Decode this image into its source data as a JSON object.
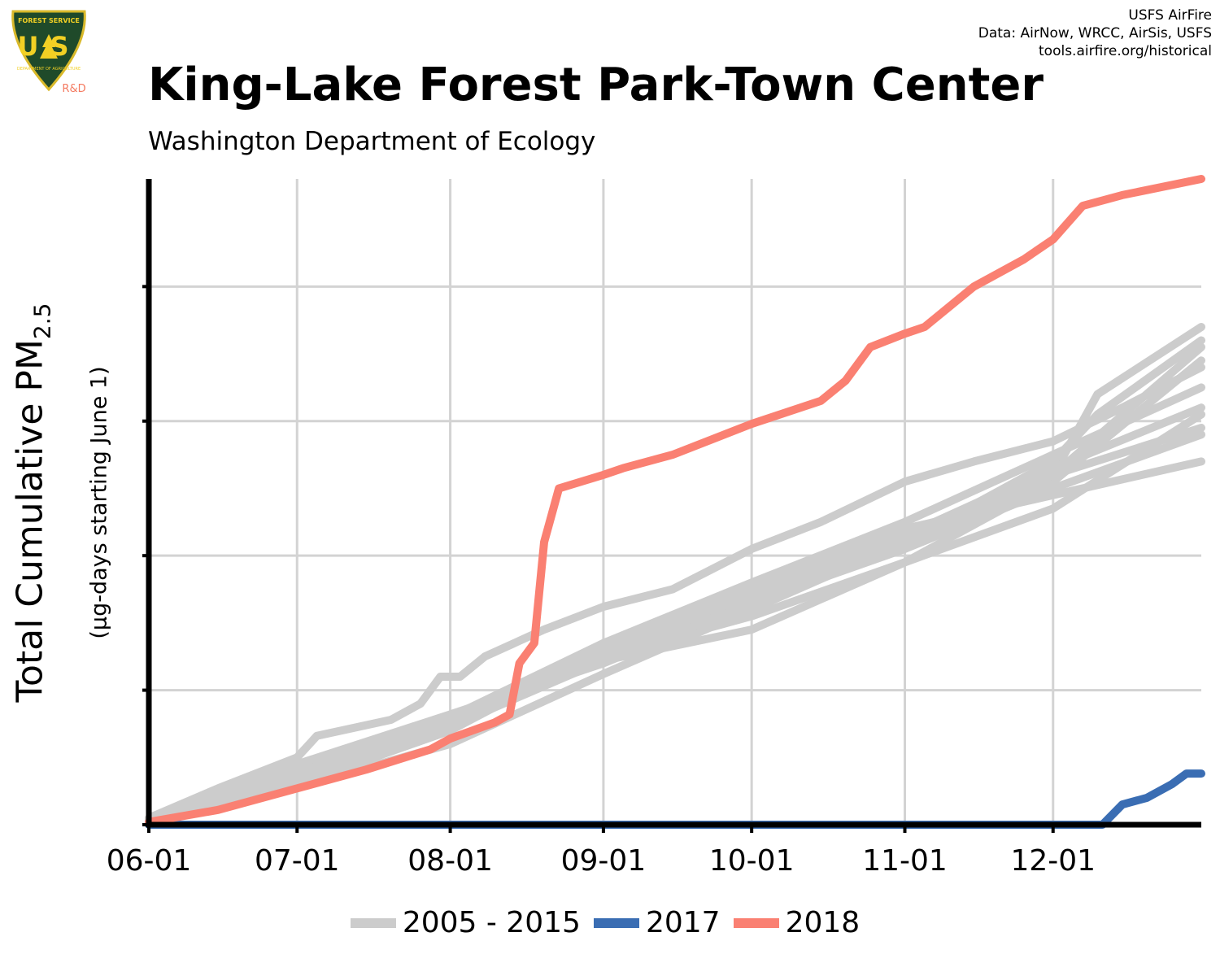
{
  "header": {
    "title": "King-Lake Forest Park-Town Center",
    "subtitle": "Washington Department of Ecology",
    "credits": [
      "USFS AirFire",
      "Data: AirNow, WRCC, AirSis, USFS",
      "tools.airfire.org/historical"
    ]
  },
  "logo": {
    "top_text": "FOREST SERVICE",
    "letters": "US",
    "bottom_text": "DEPARTMENT OF AGRICULTURE",
    "tag": "R&D",
    "colors": {
      "shield": "#1f4a2a",
      "letters": "#f2d024",
      "tag": "#f47a60"
    }
  },
  "axes": {
    "ylabel_main": "Total Cumulative PM",
    "ylabel_sub": "2.5",
    "ylabel_note": "(µg-days starting June 1)"
  },
  "legend": [
    {
      "label": "2005 - 2015",
      "color": "#cccccc"
    },
    {
      "label": "2017",
      "color": "#3a6db3"
    },
    {
      "label": "2018",
      "color": "#fa8072"
    }
  ],
  "chart_data": {
    "type": "line",
    "xlabel": "",
    "ylabel": "Total Cumulative PM2.5 (µg-days starting June 1)",
    "x_ticks": [
      "06-01",
      "07-01",
      "08-01",
      "09-01",
      "10-01",
      "11-01",
      "12-01"
    ],
    "x_range": [
      "06-01",
      "12-31"
    ],
    "y_range": [
      0,
      4.8
    ],
    "y_ticks": [
      0,
      1,
      2,
      3,
      4
    ],
    "y_tick_labels_shown": false,
    "grid": true,
    "legend_position": "bottom",
    "colors": {
      "historical": "#cccccc",
      "2017": "#3a6db3",
      "2018": "#fa8072"
    },
    "series": [
      {
        "name": "2005 - 2015",
        "group": "historical",
        "points": [
          [
            "06-01",
            0.05
          ],
          [
            "06-15",
            0.27
          ],
          [
            "07-01",
            0.5
          ],
          [
            "07-05",
            0.66
          ],
          [
            "07-20",
            0.78
          ],
          [
            "07-26",
            0.9
          ],
          [
            "07-30",
            1.1
          ],
          [
            "08-03",
            1.1
          ],
          [
            "08-08",
            1.25
          ],
          [
            "08-20",
            1.45
          ],
          [
            "09-01",
            1.62
          ],
          [
            "09-15",
            1.75
          ],
          [
            "10-01",
            2.05
          ],
          [
            "10-15",
            2.25
          ],
          [
            "11-01",
            2.55
          ],
          [
            "11-15",
            2.7
          ],
          [
            "12-01",
            2.85
          ],
          [
            "12-15",
            3.1
          ],
          [
            "12-31",
            3.4
          ]
        ]
      },
      {
        "name": "2005 - 2015",
        "group": "historical",
        "points": [
          [
            "06-01",
            0.02
          ],
          [
            "07-01",
            0.28
          ],
          [
            "08-01",
            0.6
          ],
          [
            "09-01",
            1.12
          ],
          [
            "10-01",
            1.6
          ],
          [
            "11-01",
            2.1
          ],
          [
            "12-01",
            2.6
          ],
          [
            "12-10",
            3.2
          ],
          [
            "12-31",
            3.7
          ]
        ]
      },
      {
        "name": "2005 - 2015",
        "group": "historical",
        "points": [
          [
            "06-01",
            0.03
          ],
          [
            "07-01",
            0.42
          ],
          [
            "08-01",
            0.8
          ],
          [
            "09-01",
            1.35
          ],
          [
            "10-01",
            1.75
          ],
          [
            "11-01",
            2.2
          ],
          [
            "12-01",
            2.45
          ],
          [
            "12-31",
            2.7
          ]
        ]
      },
      {
        "name": "2005 - 2015",
        "group": "historical",
        "points": [
          [
            "06-01",
            0.02
          ],
          [
            "07-01",
            0.3
          ],
          [
            "08-01",
            0.7
          ],
          [
            "09-01",
            1.3
          ],
          [
            "10-01",
            1.65
          ],
          [
            "11-01",
            2.1
          ],
          [
            "12-01",
            2.7
          ],
          [
            "12-10",
            3.05
          ],
          [
            "12-31",
            3.6
          ]
        ]
      },
      {
        "name": "2005 - 2015",
        "group": "historical",
        "points": [
          [
            "06-01",
            0.03
          ],
          [
            "07-01",
            0.4
          ],
          [
            "08-01",
            0.75
          ],
          [
            "09-01",
            1.25
          ],
          [
            "10-01",
            1.55
          ],
          [
            "11-01",
            1.95
          ],
          [
            "12-01",
            2.55
          ],
          [
            "12-31",
            3.45
          ]
        ]
      },
      {
        "name": "2005 - 2015",
        "group": "historical",
        "points": [
          [
            "06-01",
            0.02
          ],
          [
            "07-01",
            0.35
          ],
          [
            "08-01",
            0.7
          ],
          [
            "09-01",
            1.35
          ],
          [
            "10-01",
            1.8
          ],
          [
            "11-01",
            2.25
          ],
          [
            "12-01",
            2.75
          ],
          [
            "12-31",
            3.25
          ]
        ]
      },
      {
        "name": "2005 - 2015",
        "group": "historical",
        "points": [
          [
            "06-01",
            0.03
          ],
          [
            "07-01",
            0.38
          ],
          [
            "08-01",
            0.8
          ],
          [
            "09-01",
            1.3
          ],
          [
            "10-01",
            1.7
          ],
          [
            "11-01",
            2.15
          ],
          [
            "12-01",
            2.6
          ],
          [
            "12-31",
            2.95
          ]
        ]
      },
      {
        "name": "2005 - 2015",
        "group": "historical",
        "points": [
          [
            "06-01",
            0.02
          ],
          [
            "07-01",
            0.32
          ],
          [
            "08-01",
            0.72
          ],
          [
            "09-01",
            1.28
          ],
          [
            "10-01",
            1.6
          ],
          [
            "11-01",
            2.15
          ],
          [
            "12-01",
            2.65
          ],
          [
            "12-31",
            3.1
          ]
        ]
      },
      {
        "name": "2005 - 2015",
        "group": "historical",
        "points": [
          [
            "06-01",
            0.04
          ],
          [
            "07-01",
            0.45
          ],
          [
            "08-01",
            0.82
          ],
          [
            "09-01",
            1.2
          ],
          [
            "10-01",
            1.65
          ],
          [
            "11-01",
            2.05
          ],
          [
            "12-01",
            2.5
          ],
          [
            "12-31",
            2.9
          ]
        ]
      },
      {
        "name": "2005 - 2015",
        "group": "historical",
        "points": [
          [
            "06-01",
            0.02
          ],
          [
            "07-01",
            0.3
          ],
          [
            "08-01",
            0.7
          ],
          [
            "09-01",
            1.32
          ],
          [
            "10-01",
            1.7
          ],
          [
            "11-01",
            2.05
          ],
          [
            "12-01",
            2.6
          ],
          [
            "12-31",
            3.55
          ]
        ]
      },
      {
        "name": "2005 - 2015",
        "group": "historical",
        "points": [
          [
            "06-01",
            0.02
          ],
          [
            "07-01",
            0.33
          ],
          [
            "08-01",
            0.73
          ],
          [
            "09-01",
            1.22
          ],
          [
            "10-01",
            1.45
          ],
          [
            "11-01",
            1.95
          ],
          [
            "12-01",
            2.35
          ],
          [
            "12-31",
            3.05
          ]
        ]
      },
      {
        "name": "2017",
        "group": "2017",
        "points": [
          [
            "06-01",
            0.0
          ],
          [
            "12-11",
            0.0
          ],
          [
            "12-15",
            0.15
          ],
          [
            "12-20",
            0.2
          ],
          [
            "12-25",
            0.3
          ],
          [
            "12-28",
            0.38
          ],
          [
            "12-31",
            0.38
          ]
        ]
      },
      {
        "name": "2018",
        "group": "2018",
        "points": [
          [
            "06-01",
            0.02
          ],
          [
            "06-15",
            0.11
          ],
          [
            "07-01",
            0.27
          ],
          [
            "07-15",
            0.41
          ],
          [
            "07-28",
            0.56
          ],
          [
            "08-01",
            0.64
          ],
          [
            "08-10",
            0.76
          ],
          [
            "08-13",
            0.82
          ],
          [
            "08-15",
            1.2
          ],
          [
            "08-18",
            1.35
          ],
          [
            "08-20",
            2.1
          ],
          [
            "08-23",
            2.5
          ],
          [
            "09-01",
            2.6
          ],
          [
            "09-05",
            2.65
          ],
          [
            "09-15",
            2.75
          ],
          [
            "10-01",
            2.98
          ],
          [
            "10-15",
            3.15
          ],
          [
            "10-20",
            3.3
          ],
          [
            "10-25",
            3.55
          ],
          [
            "11-01",
            3.65
          ],
          [
            "11-05",
            3.7
          ],
          [
            "11-15",
            4.0
          ],
          [
            "11-25",
            4.2
          ],
          [
            "12-01",
            4.35
          ],
          [
            "12-07",
            4.6
          ],
          [
            "12-15",
            4.68
          ],
          [
            "12-31",
            4.8
          ]
        ]
      }
    ]
  }
}
